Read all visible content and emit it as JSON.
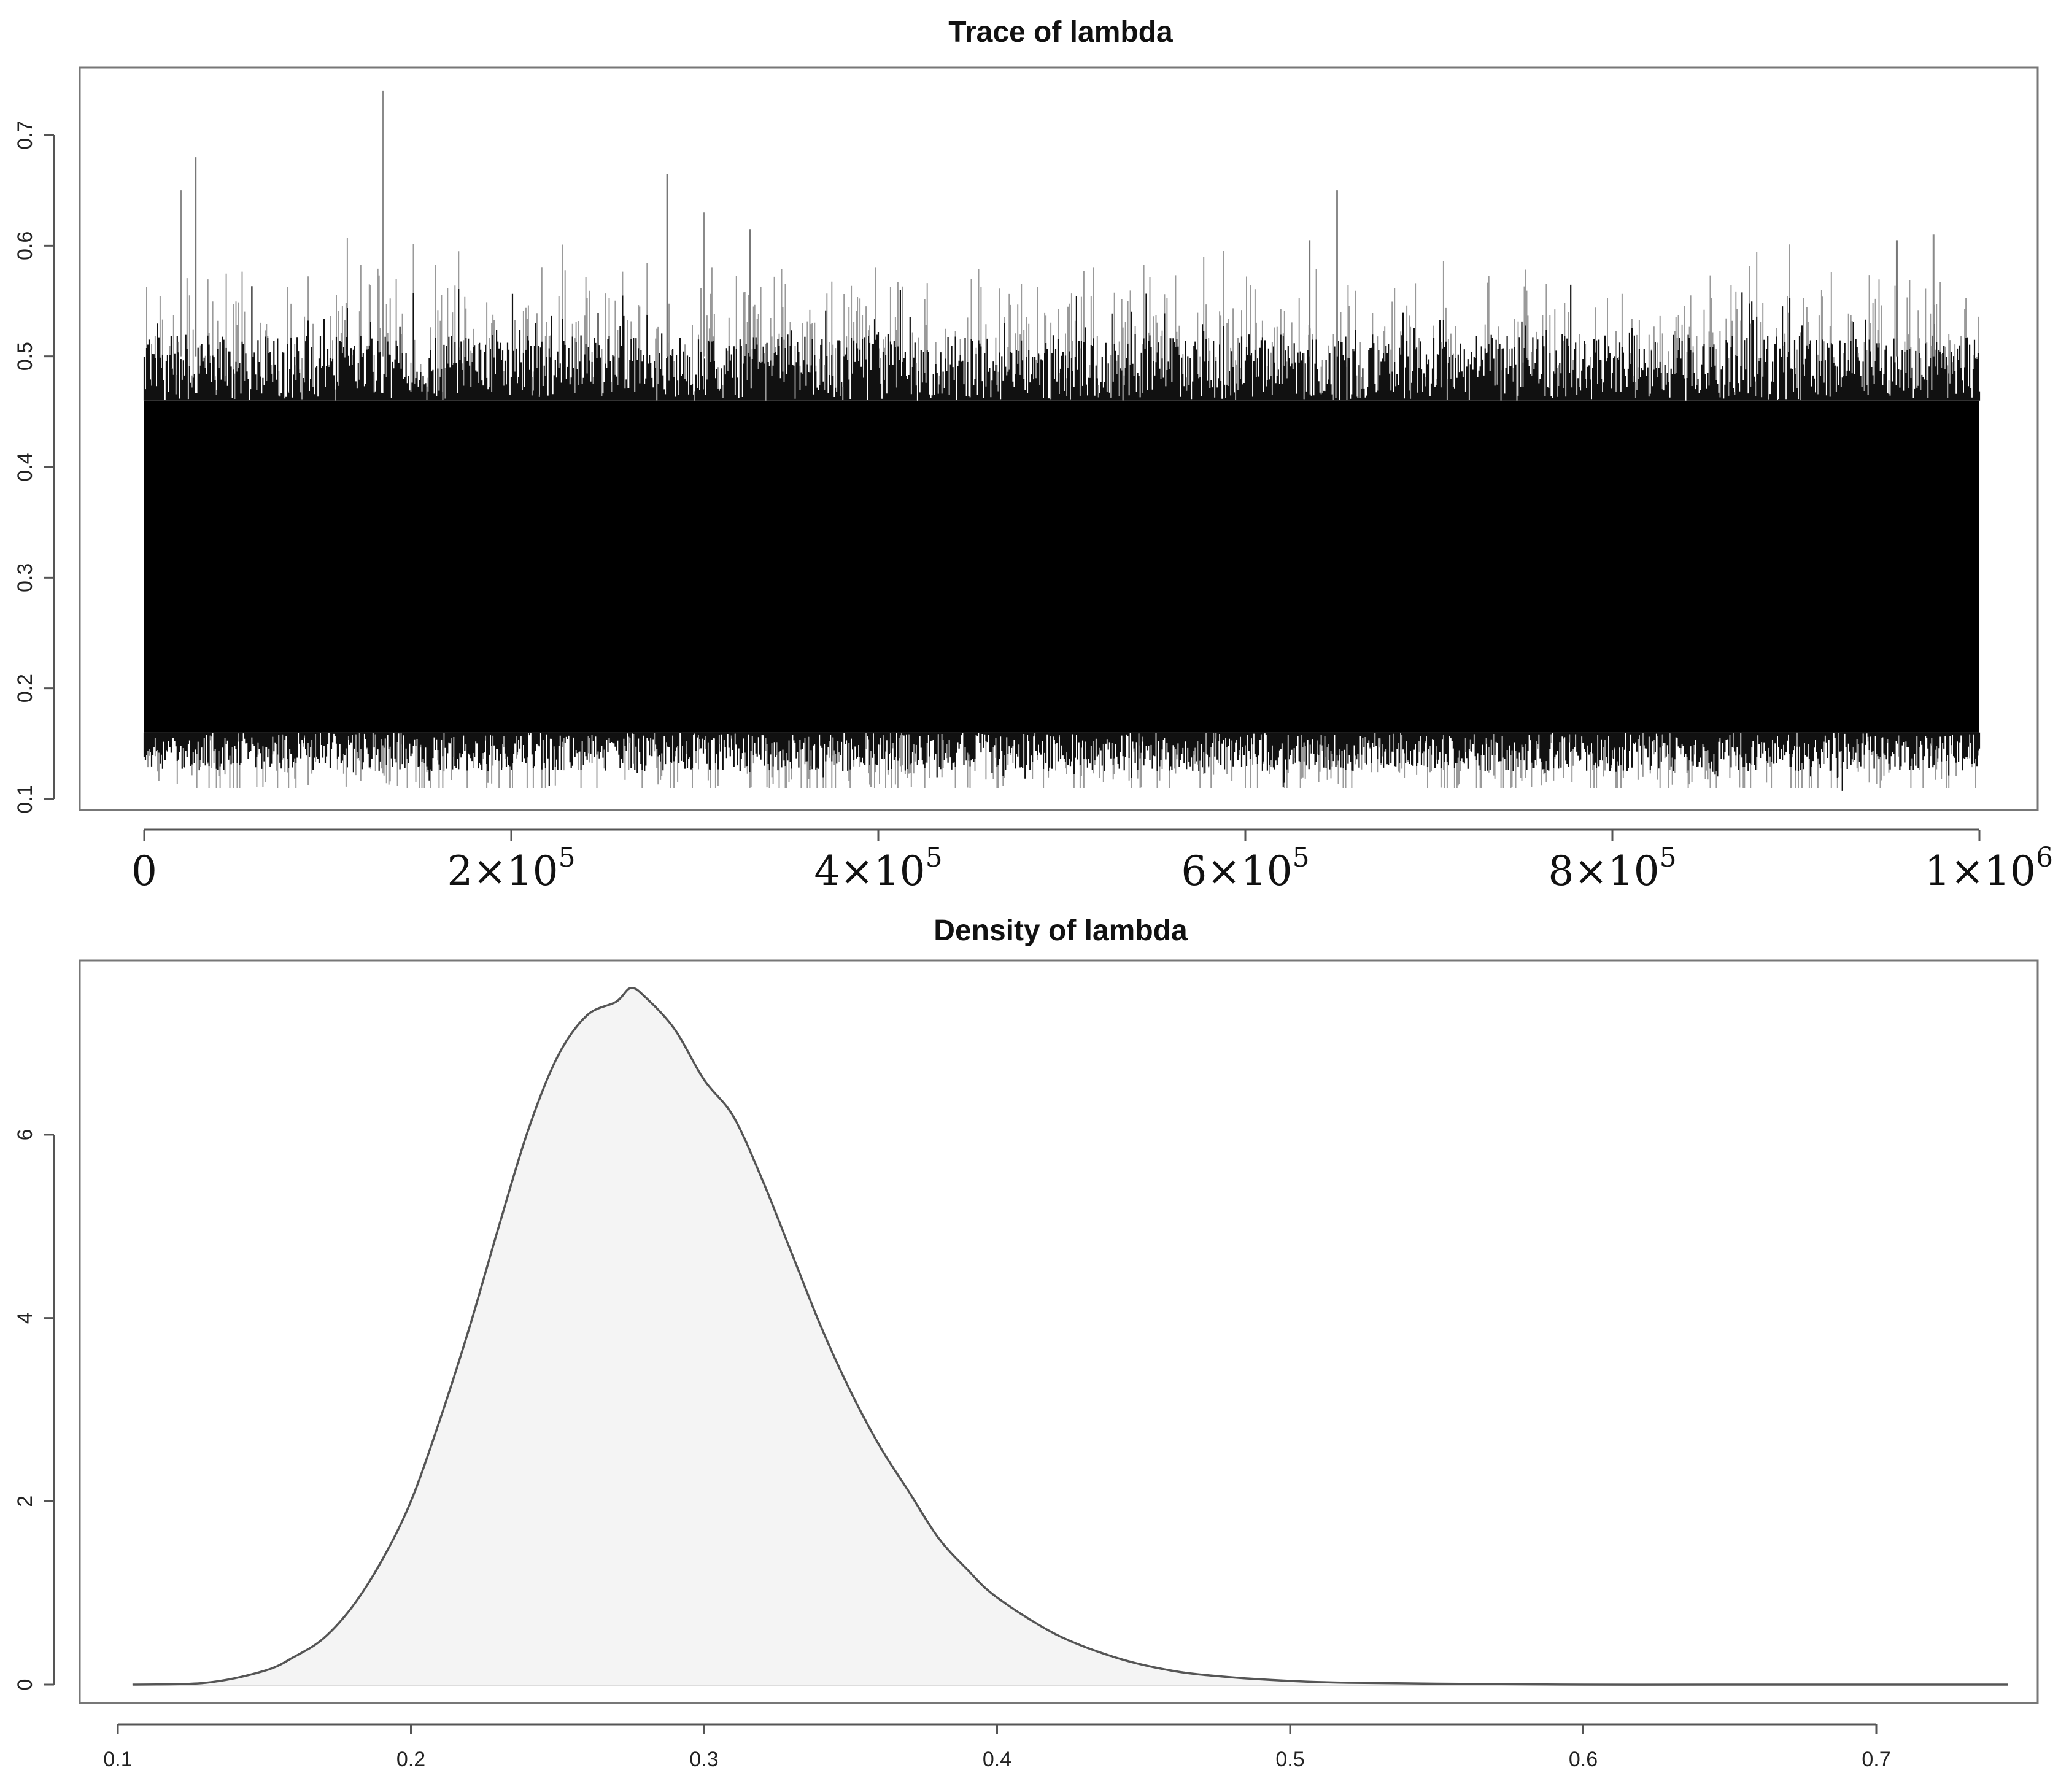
{
  "chart_data": [
    {
      "type": "line",
      "title": "Trace of lambda",
      "xlabel": "",
      "ylabel": "",
      "xlim": [
        0,
        1000000
      ],
      "ylim": [
        0.1,
        0.75
      ],
      "x_ticks": [
        {
          "value": 0,
          "base": "0",
          "exp": ""
        },
        {
          "value": 200000,
          "base": "2×10",
          "exp": "5"
        },
        {
          "value": 400000,
          "base": "4×10",
          "exp": "5"
        },
        {
          "value": 600000,
          "base": "6×10",
          "exp": "5"
        },
        {
          "value": 800000,
          "base": "8×10",
          "exp": "5"
        },
        {
          "value": 1000000,
          "base": "1×10",
          "exp": "6"
        }
      ],
      "y_ticks": [
        "0.1",
        "0.2",
        "0.3",
        "0.4",
        "0.5",
        "0.6",
        "0.7"
      ],
      "band": {
        "dense_low": 0.16,
        "dense_high": 0.46,
        "min": 0.11,
        "max": 0.74
      },
      "spikes": [
        {
          "x": 20000,
          "y": 0.65
        },
        {
          "x": 28000,
          "y": 0.68
        },
        {
          "x": 130000,
          "y": 0.74
        },
        {
          "x": 285000,
          "y": 0.665
        },
        {
          "x": 305000,
          "y": 0.63
        },
        {
          "x": 330000,
          "y": 0.615
        },
        {
          "x": 650000,
          "y": 0.65
        },
        {
          "x": 635000,
          "y": 0.605
        },
        {
          "x": 975000,
          "y": 0.61
        },
        {
          "x": 955000,
          "y": 0.605
        }
      ],
      "grid": false
    },
    {
      "type": "area",
      "title": "Density of lambda",
      "xlabel": "",
      "ylabel": "",
      "xlim": [
        0.1,
        0.75
      ],
      "ylim": [
        0,
        7.6
      ],
      "x_ticks": [
        "0.1",
        "0.2",
        "0.3",
        "0.4",
        "0.5",
        "0.6",
        "0.7"
      ],
      "y_ticks": [
        "0",
        "2",
        "4",
        "6"
      ],
      "fill": "#f4f4f4",
      "line_color": "#555555",
      "x": [
        0.105,
        0.13,
        0.15,
        0.16,
        0.17,
        0.18,
        0.19,
        0.2,
        0.21,
        0.22,
        0.23,
        0.24,
        0.25,
        0.26,
        0.27,
        0.275,
        0.28,
        0.29,
        0.3,
        0.31,
        0.32,
        0.33,
        0.34,
        0.35,
        0.36,
        0.37,
        0.38,
        0.39,
        0.4,
        0.42,
        0.44,
        0.46,
        0.48,
        0.5,
        0.52,
        0.55,
        0.6,
        0.65,
        0.7,
        0.745
      ],
      "y": [
        0.0,
        0.02,
        0.15,
        0.3,
        0.5,
        0.85,
        1.35,
        2.0,
        2.9,
        3.9,
        5.0,
        6.05,
        6.85,
        7.3,
        7.45,
        7.6,
        7.5,
        7.15,
        6.6,
        6.2,
        5.5,
        4.7,
        3.9,
        3.2,
        2.6,
        2.1,
        1.6,
        1.25,
        0.95,
        0.55,
        0.3,
        0.15,
        0.08,
        0.04,
        0.02,
        0.01,
        0.0,
        0.0,
        0.0,
        0.0
      ]
    }
  ]
}
